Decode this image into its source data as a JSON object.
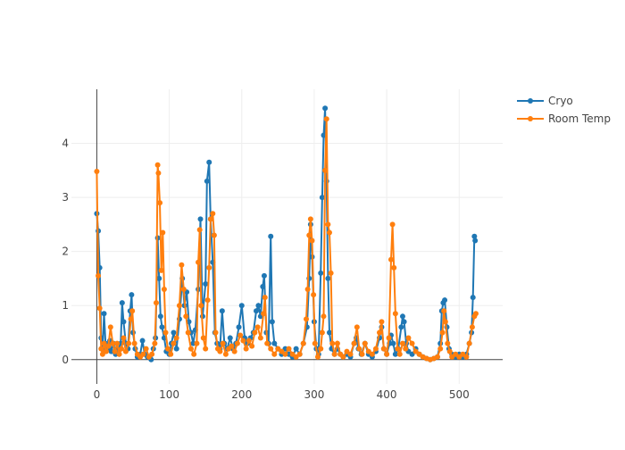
{
  "chart_data": {
    "type": "line",
    "title": "",
    "xlabel": "",
    "ylabel": "",
    "xlim": [
      -35,
      560
    ],
    "ylim": [
      -0.45,
      5
    ],
    "x_ticks": [
      0,
      100,
      200,
      300,
      400,
      500
    ],
    "y_ticks": [
      0,
      1,
      2,
      3,
      4
    ],
    "x_tick_labels": [
      "0",
      "100",
      "200",
      "300",
      "400",
      "500"
    ],
    "y_tick_labels": [
      "0",
      "1",
      "2",
      "3",
      "4"
    ],
    "grid": true,
    "markers": true,
    "legend_position": "top-right",
    "series": [
      {
        "name": "Cryo",
        "color": "#1f77b4",
        "points": [
          [
            0,
            2.7
          ],
          [
            2,
            2.38
          ],
          [
            4,
            1.7
          ],
          [
            6,
            0.4
          ],
          [
            8,
            0.2
          ],
          [
            10,
            0.85
          ],
          [
            12,
            0.3
          ],
          [
            15,
            0.2
          ],
          [
            18,
            0.35
          ],
          [
            20,
            0.15
          ],
          [
            23,
            0.3
          ],
          [
            26,
            0.1
          ],
          [
            30,
            0.2
          ],
          [
            33,
            0.3
          ],
          [
            35,
            1.05
          ],
          [
            37,
            0.7
          ],
          [
            40,
            0.3
          ],
          [
            43,
            0.2
          ],
          [
            46,
            0.9
          ],
          [
            48,
            1.2
          ],
          [
            50,
            0.5
          ],
          [
            53,
            0.2
          ],
          [
            56,
            0.05
          ],
          [
            60,
            0.1
          ],
          [
            63,
            0.35
          ],
          [
            66,
            0.1
          ],
          [
            70,
            0.05
          ],
          [
            75,
            0.0
          ],
          [
            78,
            0.2
          ],
          [
            81,
            0.4
          ],
          [
            84,
            2.25
          ],
          [
            86,
            1.5
          ],
          [
            88,
            0.8
          ],
          [
            90,
            0.6
          ],
          [
            93,
            0.4
          ],
          [
            96,
            0.15
          ],
          [
            100,
            0.1
          ],
          [
            103,
            0.3
          ],
          [
            106,
            0.5
          ],
          [
            110,
            0.2
          ],
          [
            114,
            0.75
          ],
          [
            118,
            1.5
          ],
          [
            121,
            1.0
          ],
          [
            124,
            1.25
          ],
          [
            127,
            0.7
          ],
          [
            130,
            0.5
          ],
          [
            133,
            0.3
          ],
          [
            136,
            0.55
          ],
          [
            140,
            1.3
          ],
          [
            143,
            2.6
          ],
          [
            146,
            0.8
          ],
          [
            150,
            1.4
          ],
          [
            152,
            3.3
          ],
          [
            155,
            3.65
          ],
          [
            157,
            2.6
          ],
          [
            160,
            1.8
          ],
          [
            163,
            0.5
          ],
          [
            166,
            0.3
          ],
          [
            170,
            0.2
          ],
          [
            173,
            0.9
          ],
          [
            176,
            0.3
          ],
          [
            180,
            0.2
          ],
          [
            184,
            0.4
          ],
          [
            188,
            0.2
          ],
          [
            192,
            0.3
          ],
          [
            196,
            0.6
          ],
          [
            200,
            1.0
          ],
          [
            204,
            0.4
          ],
          [
            208,
            0.3
          ],
          [
            212,
            0.4
          ],
          [
            216,
            0.5
          ],
          [
            220,
            0.9
          ],
          [
            223,
            1.0
          ],
          [
            226,
            0.8
          ],
          [
            229,
            1.35
          ],
          [
            231,
            1.55
          ],
          [
            234,
            0.5
          ],
          [
            237,
            0.3
          ],
          [
            240,
            2.28
          ],
          [
            242,
            0.7
          ],
          [
            245,
            0.3
          ],
          [
            250,
            0.2
          ],
          [
            255,
            0.1
          ],
          [
            260,
            0.2
          ],
          [
            265,
            0.1
          ],
          [
            270,
            0.05
          ],
          [
            275,
            0.2
          ],
          [
            280,
            0.1
          ],
          [
            285,
            0.3
          ],
          [
            290,
            0.6
          ],
          [
            293,
            1.5
          ],
          [
            295,
            2.5
          ],
          [
            297,
            1.9
          ],
          [
            300,
            0.7
          ],
          [
            303,
            0.2
          ],
          [
            306,
            0.1
          ],
          [
            309,
            1.6
          ],
          [
            311,
            3.0
          ],
          [
            313,
            4.15
          ],
          [
            315,
            4.65
          ],
          [
            317,
            3.3
          ],
          [
            319,
            1.5
          ],
          [
            321,
            0.5
          ],
          [
            324,
            0.2
          ],
          [
            328,
            0.1
          ],
          [
            332,
            0.2
          ],
          [
            336,
            0.1
          ],
          [
            340,
            0.05
          ],
          [
            345,
            0.1
          ],
          [
            350,
            0.05
          ],
          [
            355,
            0.3
          ],
          [
            358,
            0.4
          ],
          [
            361,
            0.2
          ],
          [
            365,
            0.1
          ],
          [
            370,
            0.3
          ],
          [
            375,
            0.1
          ],
          [
            380,
            0.05
          ],
          [
            385,
            0.15
          ],
          [
            390,
            0.4
          ],
          [
            393,
            0.6
          ],
          [
            396,
            0.2
          ],
          [
            400,
            0.1
          ],
          [
            404,
            0.3
          ],
          [
            406,
            0.45
          ],
          [
            409,
            0.3
          ],
          [
            412,
            0.1
          ],
          [
            416,
            0.2
          ],
          [
            420,
            0.6
          ],
          [
            422,
            0.8
          ],
          [
            424,
            0.7
          ],
          [
            427,
            0.3
          ],
          [
            430,
            0.15
          ],
          [
            435,
            0.1
          ],
          [
            440,
            0.2
          ],
          [
            445,
            0.1
          ],
          [
            450,
            0.05
          ],
          [
            455,
            0.02
          ],
          [
            460,
            0.0
          ],
          [
            465,
            0.02
          ],
          [
            470,
            0.05
          ],
          [
            474,
            0.3
          ],
          [
            476,
            0.9
          ],
          [
            478,
            1.05
          ],
          [
            480,
            1.1
          ],
          [
            483,
            0.6
          ],
          [
            486,
            0.2
          ],
          [
            490,
            0.1
          ],
          [
            495,
            0.05
          ],
          [
            500,
            0.1
          ],
          [
            505,
            0.05
          ],
          [
            510,
            0.1
          ],
          [
            514,
            0.3
          ],
          [
            517,
            0.5
          ],
          [
            519,
            1.15
          ],
          [
            521,
            2.28
          ],
          [
            522,
            2.2
          ]
        ]
      },
      {
        "name": "Room Temp",
        "color": "#ff7f0e",
        "points": [
          [
            0,
            3.48
          ],
          [
            2,
            1.55
          ],
          [
            4,
            0.95
          ],
          [
            6,
            0.2
          ],
          [
            8,
            0.1
          ],
          [
            10,
            0.3
          ],
          [
            13,
            0.15
          ],
          [
            16,
            0.25
          ],
          [
            19,
            0.6
          ],
          [
            22,
            0.3
          ],
          [
            25,
            0.15
          ],
          [
            28,
            0.3
          ],
          [
            31,
            0.1
          ],
          [
            34,
            0.2
          ],
          [
            37,
            0.4
          ],
          [
            40,
            0.15
          ],
          [
            44,
            0.3
          ],
          [
            47,
            0.75
          ],
          [
            49,
            0.9
          ],
          [
            52,
            0.3
          ],
          [
            56,
            0.1
          ],
          [
            60,
            0.05
          ],
          [
            64,
            0.1
          ],
          [
            68,
            0.2
          ],
          [
            72,
            0.05
          ],
          [
            76,
            0.1
          ],
          [
            80,
            0.3
          ],
          [
            82,
            1.05
          ],
          [
            84,
            3.6
          ],
          [
            85,
            3.45
          ],
          [
            87,
            2.9
          ],
          [
            89,
            1.65
          ],
          [
            91,
            2.35
          ],
          [
            93,
            1.3
          ],
          [
            95,
            0.5
          ],
          [
            98,
            0.2
          ],
          [
            102,
            0.1
          ],
          [
            106,
            0.3
          ],
          [
            110,
            0.4
          ],
          [
            114,
            1.0
          ],
          [
            117,
            1.75
          ],
          [
            120,
            1.3
          ],
          [
            123,
            0.8
          ],
          [
            126,
            0.5
          ],
          [
            130,
            0.2
          ],
          [
            134,
            0.1
          ],
          [
            138,
            0.3
          ],
          [
            140,
            1.8
          ],
          [
            142,
            2.4
          ],
          [
            144,
            1.0
          ],
          [
            147,
            0.4
          ],
          [
            150,
            0.2
          ],
          [
            153,
            1.1
          ],
          [
            155,
            1.7
          ],
          [
            157,
            2.6
          ],
          [
            160,
            2.7
          ],
          [
            162,
            2.3
          ],
          [
            164,
            0.5
          ],
          [
            167,
            0.2
          ],
          [
            170,
            0.15
          ],
          [
            174,
            0.3
          ],
          [
            178,
            0.1
          ],
          [
            182,
            0.2
          ],
          [
            186,
            0.25
          ],
          [
            190,
            0.15
          ],
          [
            194,
            0.3
          ],
          [
            198,
            0.45
          ],
          [
            202,
            0.35
          ],
          [
            206,
            0.2
          ],
          [
            210,
            0.35
          ],
          [
            214,
            0.25
          ],
          [
            218,
            0.5
          ],
          [
            222,
            0.6
          ],
          [
            226,
            0.4
          ],
          [
            230,
            0.85
          ],
          [
            232,
            1.15
          ],
          [
            235,
            0.3
          ],
          [
            240,
            0.2
          ],
          [
            245,
            0.1
          ],
          [
            250,
            0.2
          ],
          [
            255,
            0.15
          ],
          [
            260,
            0.1
          ],
          [
            265,
            0.2
          ],
          [
            270,
            0.1
          ],
          [
            275,
            0.05
          ],
          [
            280,
            0.1
          ],
          [
            285,
            0.3
          ],
          [
            289,
            0.75
          ],
          [
            291,
            1.3
          ],
          [
            293,
            2.3
          ],
          [
            295,
            2.6
          ],
          [
            297,
            2.2
          ],
          [
            299,
            1.2
          ],
          [
            301,
            0.3
          ],
          [
            305,
            0.05
          ],
          [
            309,
            0.2
          ],
          [
            311,
            0.5
          ],
          [
            313,
            0.8
          ],
          [
            315,
            3.5
          ],
          [
            317,
            4.45
          ],
          [
            319,
            2.5
          ],
          [
            321,
            2.35
          ],
          [
            323,
            1.6
          ],
          [
            325,
            0.3
          ],
          [
            328,
            0.1
          ],
          [
            332,
            0.3
          ],
          [
            336,
            0.1
          ],
          [
            340,
            0.05
          ],
          [
            345,
            0.15
          ],
          [
            350,
            0.1
          ],
          [
            355,
            0.3
          ],
          [
            359,
            0.6
          ],
          [
            362,
            0.2
          ],
          [
            366,
            0.1
          ],
          [
            370,
            0.3
          ],
          [
            375,
            0.15
          ],
          [
            380,
            0.1
          ],
          [
            385,
            0.2
          ],
          [
            390,
            0.5
          ],
          [
            393,
            0.7
          ],
          [
            396,
            0.2
          ],
          [
            400,
            0.1
          ],
          [
            403,
            0.4
          ],
          [
            406,
            1.85
          ],
          [
            408,
            2.5
          ],
          [
            410,
            1.7
          ],
          [
            412,
            0.85
          ],
          [
            415,
            0.2
          ],
          [
            418,
            0.1
          ],
          [
            422,
            0.3
          ],
          [
            426,
            0.2
          ],
          [
            430,
            0.4
          ],
          [
            435,
            0.3
          ],
          [
            440,
            0.15
          ],
          [
            445,
            0.1
          ],
          [
            450,
            0.05
          ],
          [
            455,
            0.02
          ],
          [
            460,
            0.0
          ],
          [
            465,
            0.02
          ],
          [
            470,
            0.05
          ],
          [
            474,
            0.2
          ],
          [
            477,
            0.5
          ],
          [
            479,
            0.9
          ],
          [
            481,
            0.7
          ],
          [
            484,
            0.3
          ],
          [
            487,
            0.15
          ],
          [
            490,
            0.05
          ],
          [
            495,
            0.1
          ],
          [
            500,
            0.05
          ],
          [
            505,
            0.1
          ],
          [
            510,
            0.05
          ],
          [
            514,
            0.3
          ],
          [
            518,
            0.6
          ],
          [
            521,
            0.8
          ],
          [
            523,
            0.85
          ]
        ]
      }
    ]
  }
}
